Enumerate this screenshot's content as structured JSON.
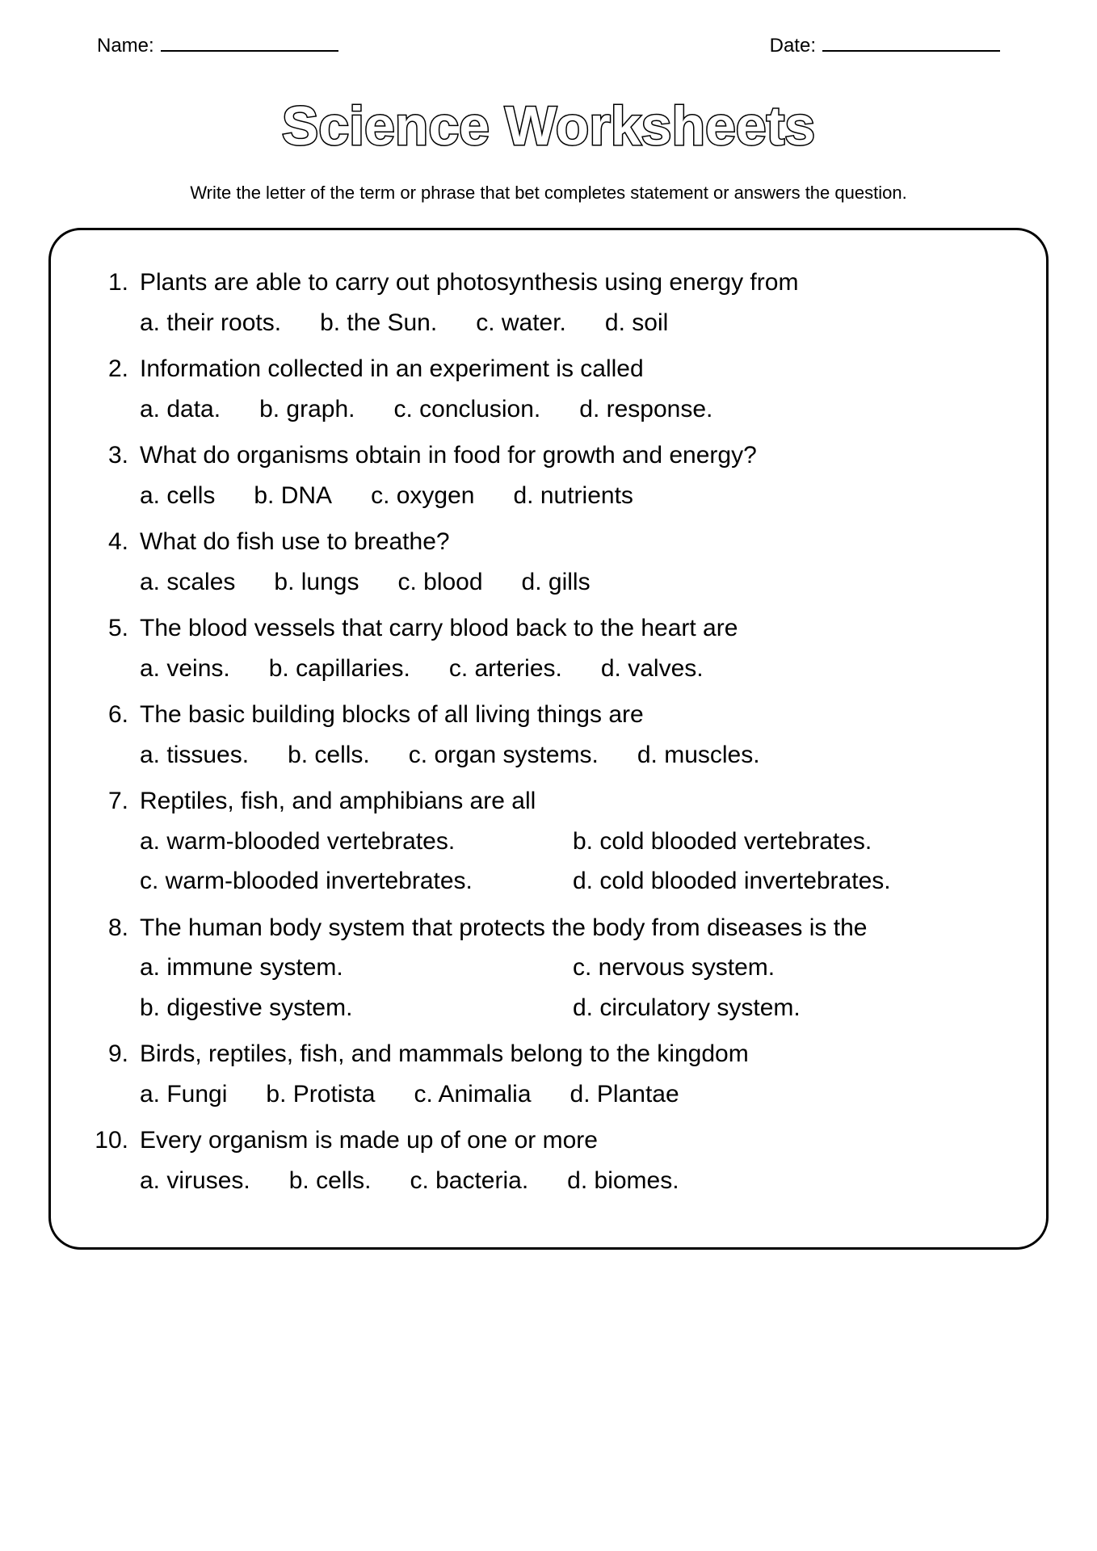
{
  "header": {
    "name_label": "Name:",
    "date_label": "Date:"
  },
  "title": "Science Worksheets",
  "instructions": "Write the letter of the term or phrase that bet completes statement or answers the question.",
  "questions": [
    {
      "num": "1.",
      "text": "Plants are able to carry out photosynthesis using energy from",
      "layout": "inline",
      "opts": [
        "a. their roots.",
        "b. the Sun.",
        "c. water.",
        "d. soil"
      ]
    },
    {
      "num": "2.",
      "text": "Information collected in an experiment is called",
      "layout": "inline",
      "opts": [
        "a. data.",
        "b. graph.",
        "c. conclusion.",
        "d. response."
      ]
    },
    {
      "num": "3.",
      "text": "What do organisms obtain in food for growth and energy?",
      "layout": "inline",
      "opts": [
        "a. cells",
        "b. DNA",
        "c. oxygen",
        "d. nutrients"
      ]
    },
    {
      "num": "4.",
      "text": "What do fish use to breathe?",
      "layout": "inline",
      "opts": [
        "a. scales",
        "b. lungs",
        "c. blood",
        "d. gills"
      ]
    },
    {
      "num": "5.",
      "text": "The blood vessels that carry blood back to the heart are",
      "layout": "inline",
      "opts": [
        "a. veins.",
        "b. capillaries.",
        "c. arteries.",
        "d. valves."
      ]
    },
    {
      "num": "6.",
      "text": "The basic building blocks of all living things are",
      "layout": "inline",
      "opts": [
        "a. tissues.",
        "b. cells.",
        "c. organ systems.",
        "d. muscles."
      ]
    },
    {
      "num": "7.",
      "text": "Reptiles, fish, and amphibians are all",
      "layout": "two-col",
      "opts": [
        "a. warm-blooded vertebrates.",
        "b. cold blooded vertebrates.",
        "c. warm-blooded invertebrates.",
        "d. cold blooded invertebrates."
      ]
    },
    {
      "num": "8.",
      "text": "The human body system that protects the body from diseases is the",
      "layout": "two-col",
      "opts": [
        "a. immune system.",
        "c. nervous system.",
        "b. digestive system.",
        "d. circulatory system."
      ]
    },
    {
      "num": "9.",
      "text": "Birds, reptiles, fish, and mammals belong to the kingdom",
      "layout": "inline",
      "opts": [
        "a. Fungi",
        "b. Protista",
        "c. Animalia",
        "d. Plantae"
      ]
    },
    {
      "num": "10.",
      "text": "Every organism is made up of one or more",
      "layout": "inline",
      "opts": [
        "a. viruses.",
        "b. cells.",
        "c. bacteria.",
        "d. biomes."
      ]
    }
  ],
  "style": {
    "page_bg": "#ffffff",
    "text_color": "#000000",
    "border_color": "#000000",
    "border_radius": 40,
    "border_width": 3,
    "body_fontsize": 30,
    "header_fontsize": 24,
    "instructions_fontsize": 22,
    "title_fontsize": 72
  }
}
